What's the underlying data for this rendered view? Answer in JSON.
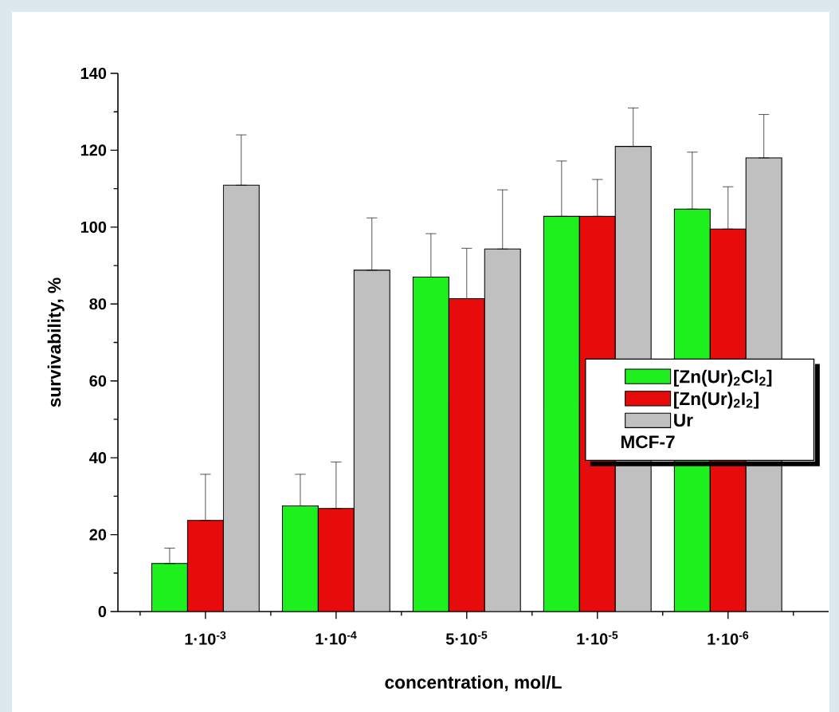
{
  "chart_data": {
    "type": "bar",
    "xlabel": "concentration, mol/L",
    "ylabel": "survivability, %",
    "categories": [
      "1·10$^{-3}$",
      "1·10$^{-4}$",
      "5·10$^{-5}$",
      "1·10$^{-5}$",
      "1·10$^{-6}$"
    ],
    "series": [
      {
        "name": "[Zn(Ur)$_{2}$Cl$_{2}$]",
        "color": "#1ef01e",
        "values": [
          12.5,
          27.5,
          87,
          102.8,
          104.7
        ],
        "errors": [
          [
            12.5,
            16.5
          ],
          [
            27.5,
            35.7
          ],
          [
            87,
            98.3
          ],
          [
            102.8,
            117.2
          ],
          [
            104.7,
            119.5
          ]
        ]
      },
      {
        "name": "[Zn(Ur)$_{2}$I$_{2}$]",
        "color": "#e60c0c",
        "values": [
          23.7,
          26.8,
          81.4,
          102.8,
          99.5
        ],
        "errors": [
          [
            23.7,
            35.7
          ],
          [
            26.8,
            38.9
          ],
          [
            81.4,
            94.5
          ],
          [
            102.8,
            112.4
          ],
          [
            99.5,
            110.5
          ]
        ]
      },
      {
        "name": "Ur",
        "color": "#c0c0c0",
        "values": [
          110.9,
          88.8,
          94.3,
          121,
          118
        ],
        "errors": [
          [
            110.9,
            124
          ],
          [
            88.8,
            102.4
          ],
          [
            94.3,
            109.7
          ],
          [
            121,
            131
          ],
          [
            118,
            129.3
          ]
        ]
      }
    ],
    "ylim": [
      0,
      140
    ],
    "yticks": [
      0,
      20,
      40,
      60,
      80,
      100,
      120,
      140
    ],
    "grid": false,
    "legend": "right",
    "annotations": [
      "MCF-7"
    ]
  }
}
